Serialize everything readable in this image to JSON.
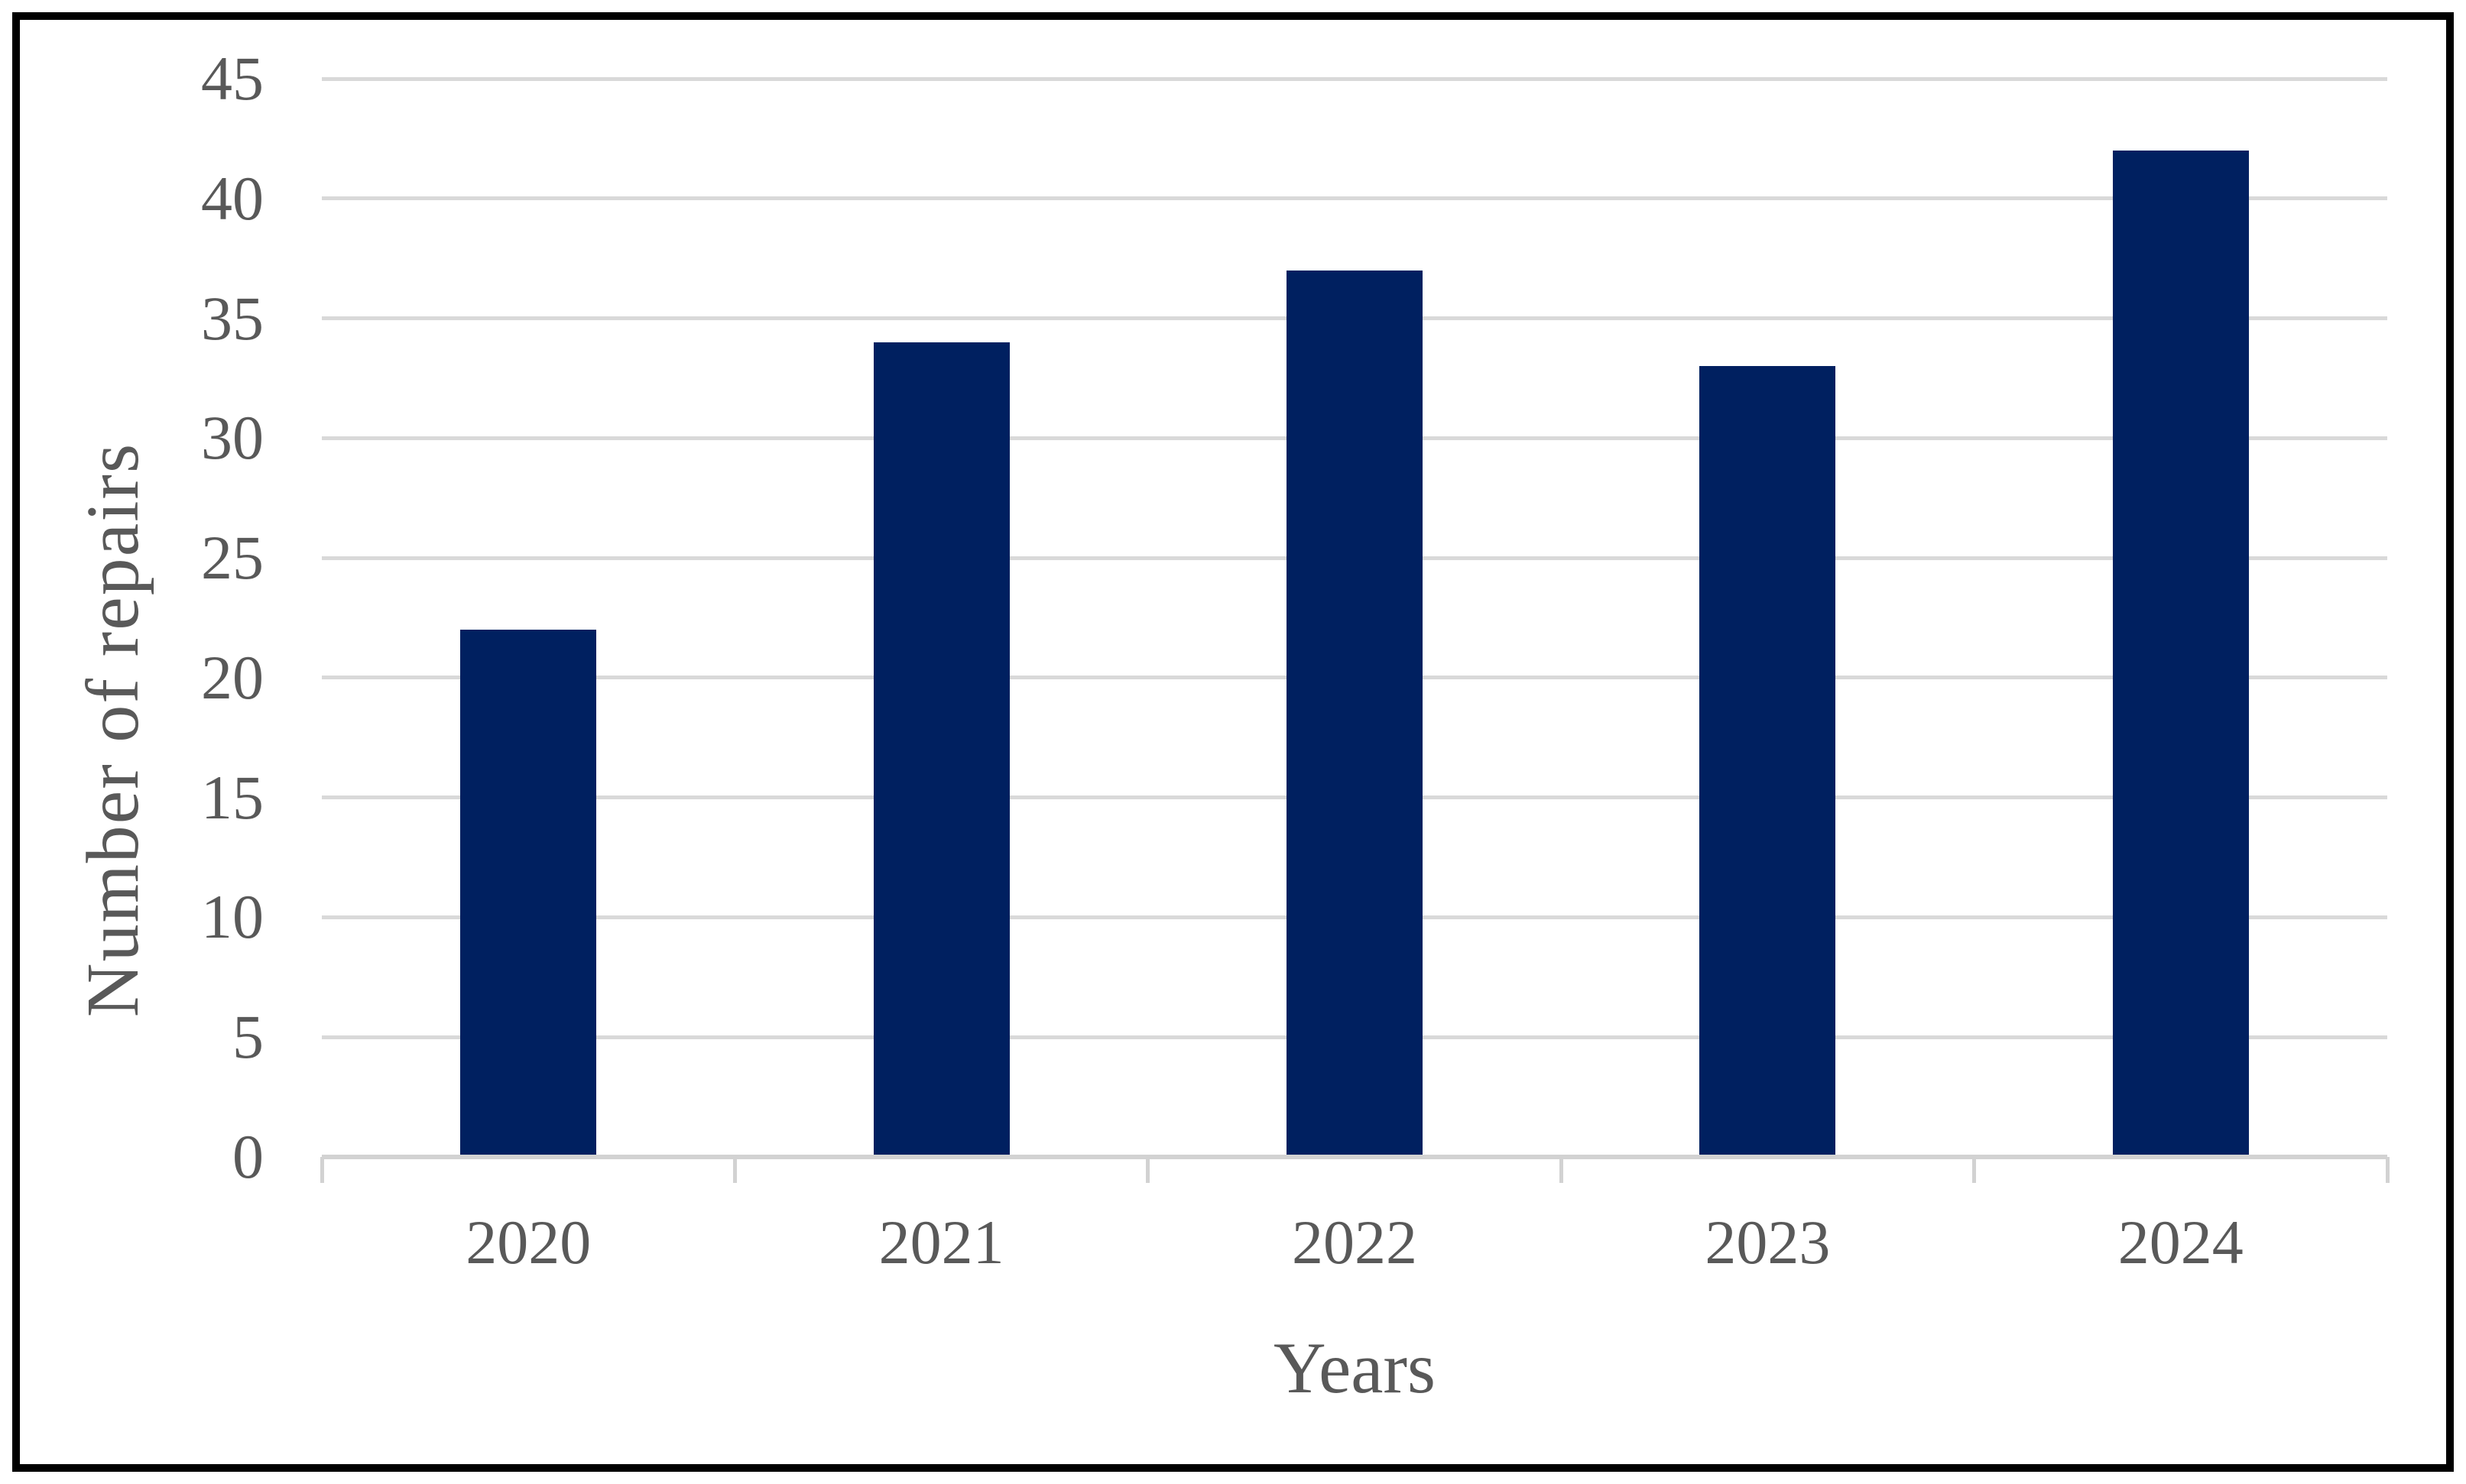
{
  "chart_data": {
    "type": "bar",
    "title": "",
    "categories": [
      "2020",
      "2021",
      "2022",
      "2023",
      "2024"
    ],
    "values": [
      22,
      34,
      37,
      33,
      42
    ],
    "xlabel": "Years",
    "ylabel": "Number of repairs",
    "ylim": [
      0,
      45
    ],
    "ytick_step": 5,
    "ytick_labels": [
      "0",
      "5",
      "10",
      "15",
      "20",
      "25",
      "30",
      "35",
      "40",
      "45"
    ],
    "grid": "horizontal",
    "legend": "none",
    "colors": {
      "bar_fill": "#002060",
      "gridline": "#d9d9d9",
      "axis_line": "#d2d2d2",
      "tick_text": "#595959",
      "frame_border": "#000000",
      "background": "#ffffff"
    }
  }
}
